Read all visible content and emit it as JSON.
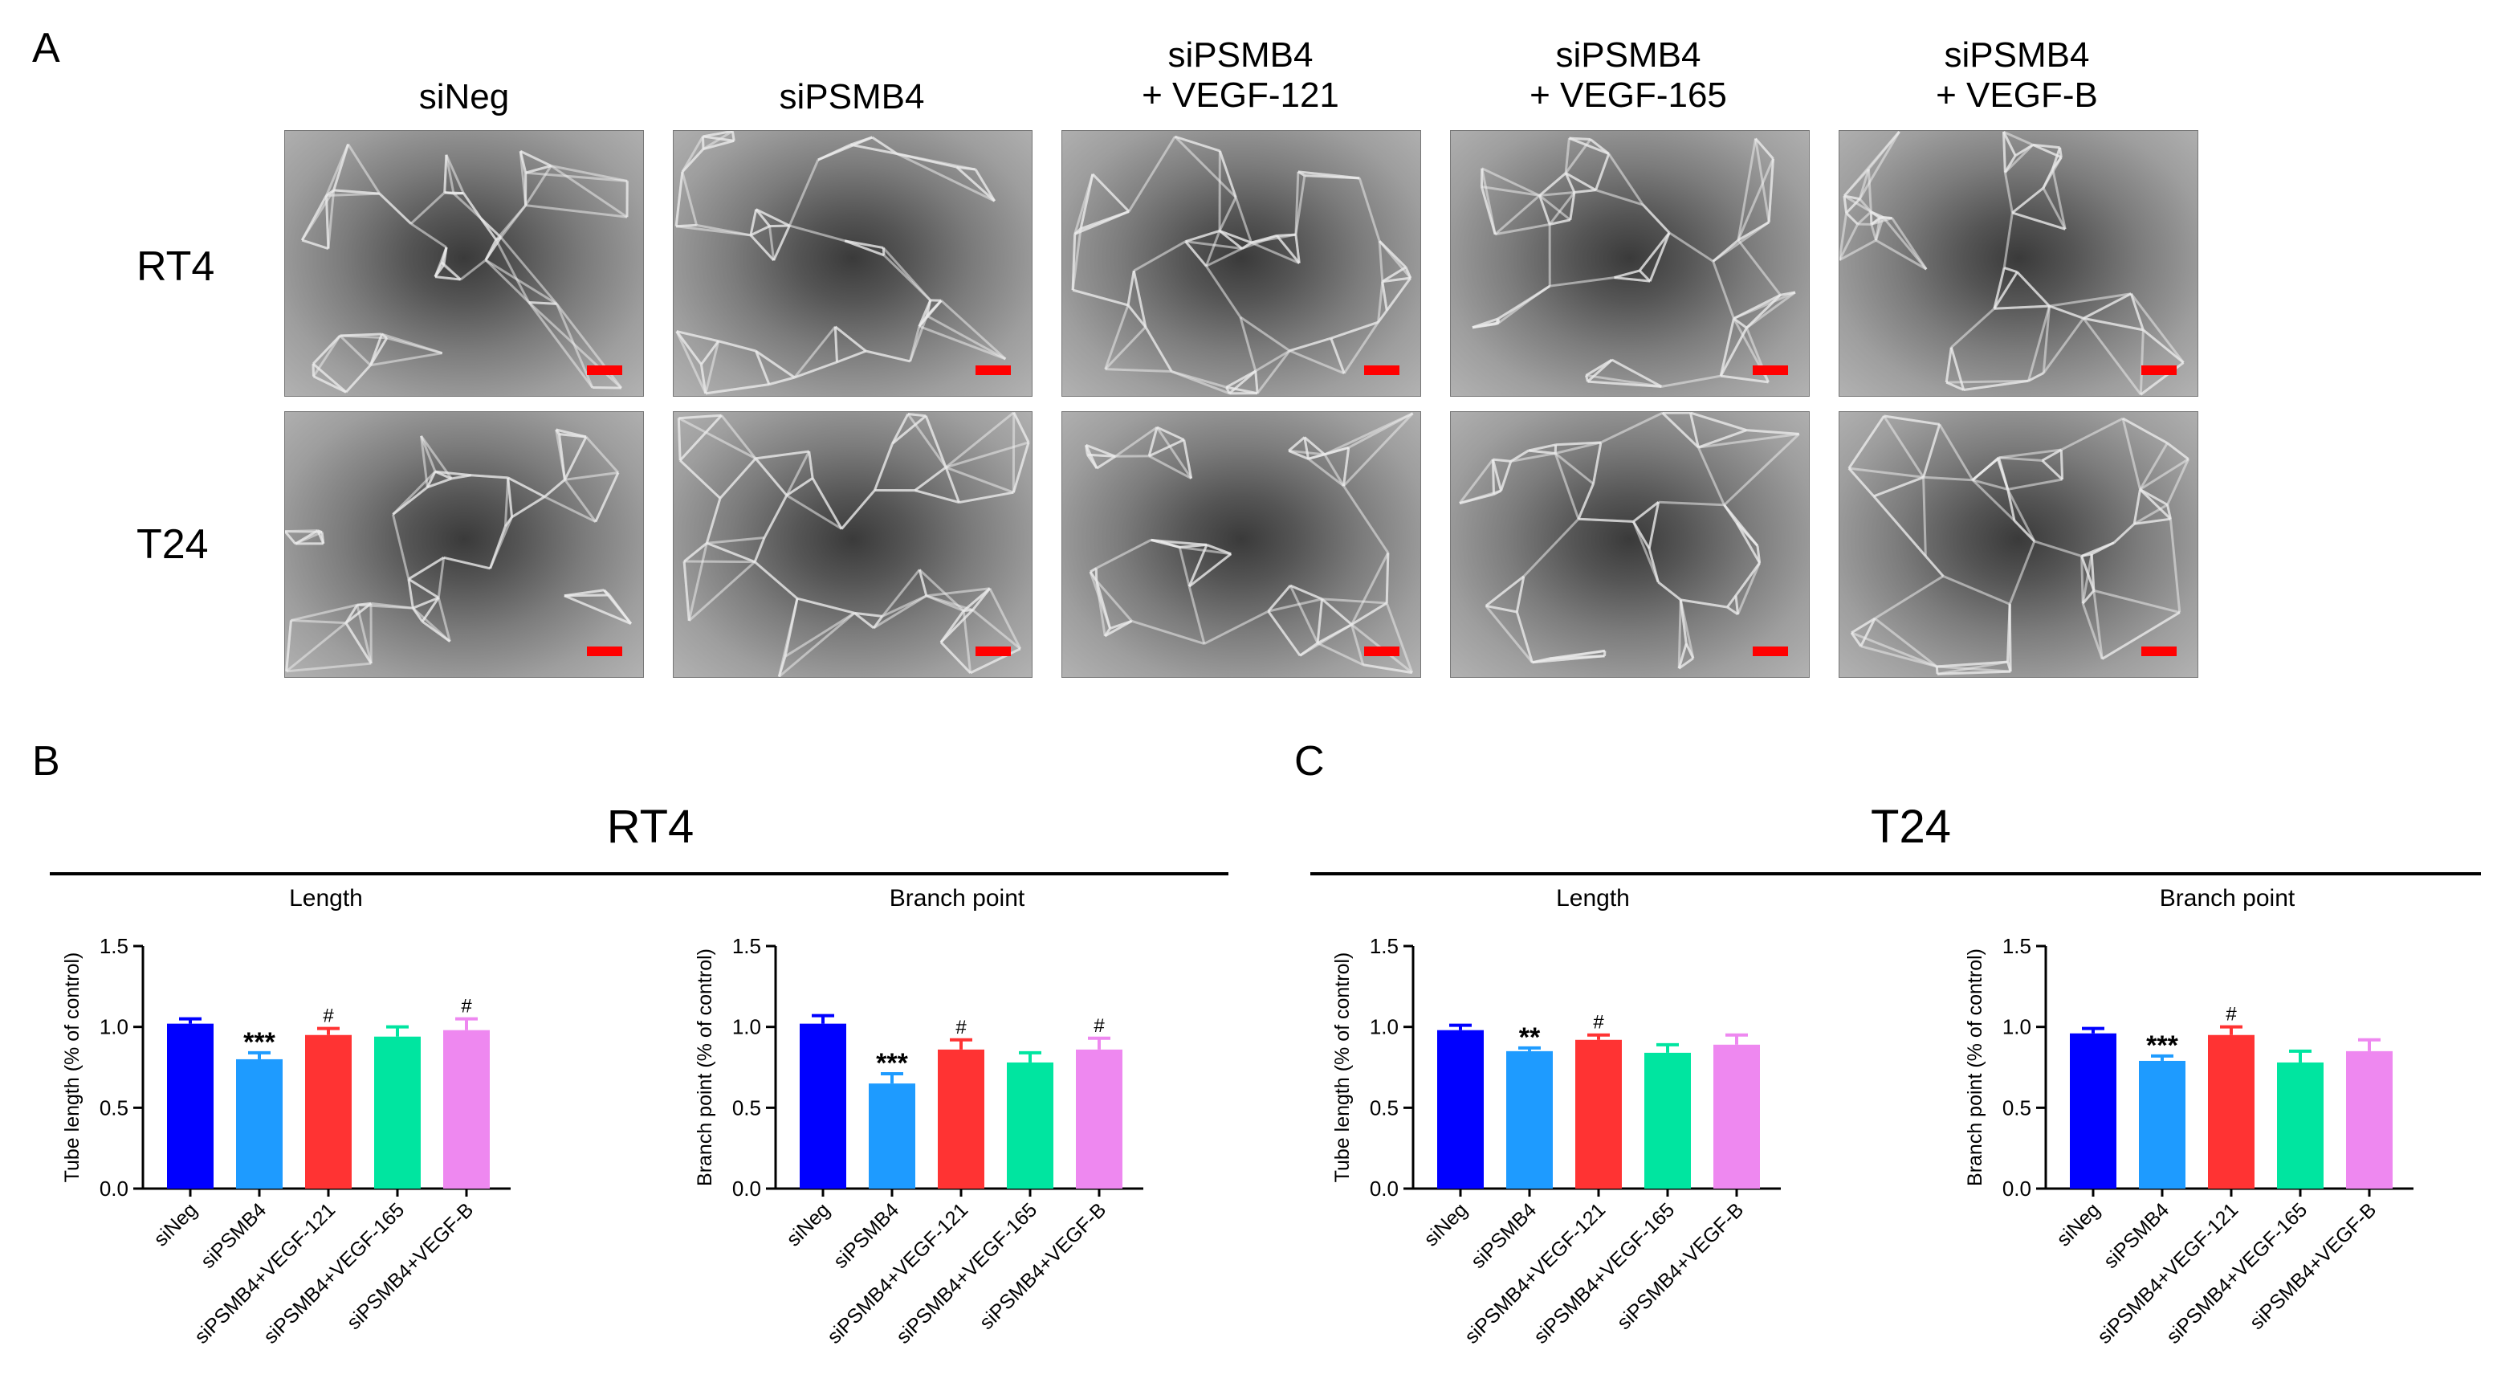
{
  "panelA": {
    "letter": "A",
    "columns": [
      "siNeg",
      "siPSMB4",
      "siPSMB4\n+ VEGF-121",
      "siPSMB4\n+ VEGF-165",
      "siPSMB4\n+ VEGF-B"
    ],
    "rows": [
      "RT4",
      "T24"
    ]
  },
  "panelB": {
    "letter": "B",
    "title": "RT4"
  },
  "panelC": {
    "letter": "C",
    "title": "T24"
  },
  "colors": [
    "#0000ff",
    "#1e9bff",
    "#ff3333",
    "#00e5a0",
    "#ee88f0"
  ],
  "chart_data": [
    {
      "type": "bar",
      "group": "RT4",
      "title": "Length",
      "ylabel": "Tube length (% of control)",
      "categories": [
        "siNeg",
        "siPSMB4",
        "siPSMB4+VEGF-121",
        "siPSMB4+VEGF-165",
        "siPSMB4+VEGF-B"
      ],
      "values": [
        1.02,
        0.8,
        0.95,
        0.94,
        0.98
      ],
      "errors": [
        0.03,
        0.04,
        0.04,
        0.06,
        0.07
      ],
      "annotations": [
        "",
        "***",
        "#",
        "",
        "#"
      ],
      "ylim": [
        0,
        1.5
      ],
      "yticks": [
        "0.0",
        "0.5",
        "1.0",
        "1.5"
      ]
    },
    {
      "type": "bar",
      "group": "RT4",
      "title": "Branch point",
      "ylabel": "Branch point (% of control)",
      "categories": [
        "siNeg",
        "siPSMB4",
        "siPSMB4+VEGF-121",
        "siPSMB4+VEGF-165",
        "siPSMB4+VEGF-B"
      ],
      "values": [
        1.02,
        0.65,
        0.86,
        0.78,
        0.86
      ],
      "errors": [
        0.05,
        0.06,
        0.06,
        0.06,
        0.07
      ],
      "annotations": [
        "",
        "***",
        "#",
        "",
        "#"
      ],
      "ylim": [
        0,
        1.5
      ],
      "yticks": [
        "0.0",
        "0.5",
        "1.0",
        "1.5"
      ]
    },
    {
      "type": "bar",
      "group": "T24",
      "title": "Length",
      "ylabel": "Tube length (% of control)",
      "categories": [
        "siNeg",
        "siPSMB4",
        "siPSMB4+VEGF-121",
        "siPSMB4+VEGF-165",
        "siPSMB4+VEGF-B"
      ],
      "values": [
        0.98,
        0.85,
        0.92,
        0.84,
        0.89
      ],
      "errors": [
        0.03,
        0.02,
        0.03,
        0.05,
        0.06
      ],
      "annotations": [
        "",
        "**",
        "#",
        "",
        ""
      ],
      "ylim": [
        0,
        1.5
      ],
      "yticks": [
        "0.0",
        "0.5",
        "1.0",
        "1.5"
      ]
    },
    {
      "type": "bar",
      "group": "T24",
      "title": "Branch point",
      "ylabel": "Branch point (% of control)",
      "categories": [
        "siNeg",
        "siPSMB4",
        "siPSMB4+VEGF-121",
        "siPSMB4+VEGF-165",
        "siPSMB4+VEGF-B"
      ],
      "values": [
        0.96,
        0.79,
        0.95,
        0.78,
        0.85
      ],
      "errors": [
        0.03,
        0.03,
        0.05,
        0.07,
        0.07
      ],
      "annotations": [
        "",
        "***",
        "#",
        "",
        ""
      ],
      "ylim": [
        0,
        1.5
      ],
      "yticks": [
        "0.0",
        "0.5",
        "1.0",
        "1.5"
      ]
    }
  ]
}
